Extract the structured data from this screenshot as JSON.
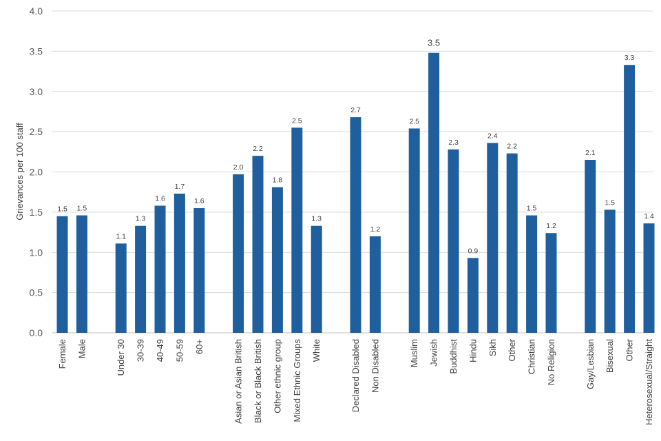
{
  "chart_data": {
    "type": "bar",
    "title": "",
    "ylabel": "Grievances per 100 staff",
    "xlabel": "",
    "ylim": [
      0,
      4
    ],
    "yticks": [
      "0.0",
      "0.5",
      "1.0",
      "1.5",
      "2.0",
      "2.5",
      "3.0",
      "3.5",
      "4.0"
    ],
    "grid": true,
    "bar_color": "#1f5f9d",
    "categories": [
      "Female",
      "Male",
      "Under 30",
      "30-39",
      "40-49",
      "50-59",
      "60+",
      "Asian or Asian British",
      "Black or Black British",
      "Other ethnic group",
      "Mixed Ethnic Groups",
      "White",
      "Declared Disabled",
      "Non Disabled",
      "Muslim",
      "Jewish",
      "Buddhist",
      "Hindu",
      "Sikh",
      "Other",
      "Christian",
      "No Religion",
      "Gay/Lesbian",
      "Bisexual",
      "Other",
      "Heterosexual/Straight"
    ],
    "values": [
      1.45,
      1.46,
      1.11,
      1.33,
      1.58,
      1.73,
      1.55,
      1.97,
      2.2,
      1.81,
      2.55,
      1.33,
      2.68,
      1.2,
      2.54,
      3.48,
      2.28,
      0.93,
      2.36,
      2.23,
      1.46,
      1.24,
      2.15,
      1.53,
      3.33,
      1.36
    ],
    "data_labels": [
      "1.5",
      "1.5",
      "1.1",
      "1.3",
      "1.6",
      "1.7",
      "1.6",
      "2.0",
      "2.2",
      "1.8",
      "2.5",
      "1.3",
      "2.7",
      "1.2",
      "2.5",
      "3.5",
      "2.3",
      "0.9",
      "2.4",
      "2.2",
      "1.5",
      "1.2",
      "2.1",
      "1.5",
      "3.3",
      "1.4"
    ],
    "groups": [
      {
        "start": 0,
        "count": 2
      },
      {
        "start": 2,
        "count": 5
      },
      {
        "start": 7,
        "count": 5
      },
      {
        "start": 12,
        "count": 2
      },
      {
        "start": 14,
        "count": 8
      },
      {
        "start": 22,
        "count": 4
      }
    ]
  }
}
